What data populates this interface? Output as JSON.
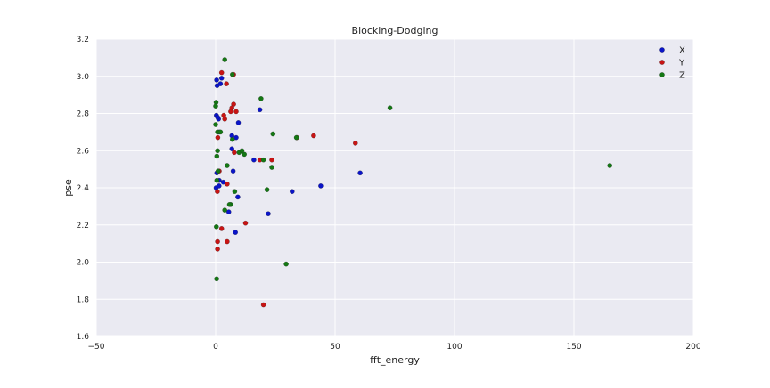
{
  "chart_data": {
    "type": "scatter",
    "title": "Blocking-Dodging",
    "xlabel": "fft_energy",
    "ylabel": "pse",
    "xlim": [
      -50,
      200
    ],
    "ylim": [
      1.6,
      3.2
    ],
    "xticks": [
      -50,
      0,
      50,
      100,
      150,
      200
    ],
    "yticks": [
      1.6,
      1.8,
      2.0,
      2.2,
      2.4,
      2.6,
      2.8,
      3.0,
      3.2
    ],
    "xtick_labels": [
      "−50",
      "0",
      "50",
      "100",
      "150",
      "200"
    ],
    "ytick_labels": [
      "1.6",
      "1.8",
      "2.0",
      "2.2",
      "2.4",
      "2.6",
      "2.8",
      "3.0",
      "3.2"
    ],
    "grid": true,
    "legend_position": "top-right",
    "background_color": "#eaeaf2",
    "grid_color": "#ffffff",
    "series": [
      {
        "name": "X",
        "color": "#0a14c8",
        "points": [
          [
            0.4,
            2.98
          ],
          [
            0.6,
            2.95
          ],
          [
            2.0,
            2.96
          ],
          [
            2.5,
            2.99
          ],
          [
            0.3,
            2.79
          ],
          [
            1.2,
            2.77
          ],
          [
            1.5,
            2.7
          ],
          [
            0.8,
            2.78
          ],
          [
            6.8,
            2.68
          ],
          [
            8.6,
            2.67
          ],
          [
            9.5,
            2.75
          ],
          [
            18.5,
            2.82
          ],
          [
            6.8,
            2.61
          ],
          [
            16.0,
            2.55
          ],
          [
            0.5,
            2.48
          ],
          [
            1.5,
            2.44
          ],
          [
            3.2,
            2.43
          ],
          [
            7.3,
            2.49
          ],
          [
            0.2,
            2.4
          ],
          [
            1.4,
            2.41
          ],
          [
            9.3,
            2.35
          ],
          [
            32.0,
            2.38
          ],
          [
            44.0,
            2.41
          ],
          [
            60.5,
            2.48
          ],
          [
            5.5,
            2.27
          ],
          [
            22.0,
            2.26
          ],
          [
            8.3,
            2.16
          ]
        ]
      },
      {
        "name": "Y",
        "color": "#c81414",
        "points": [
          [
            2.5,
            3.02
          ],
          [
            4.5,
            2.96
          ],
          [
            7.5,
            3.01
          ],
          [
            7.5,
            2.85
          ],
          [
            6.8,
            2.83
          ],
          [
            6.3,
            2.81
          ],
          [
            3.4,
            2.79
          ],
          [
            8.6,
            2.81
          ],
          [
            3.8,
            2.77
          ],
          [
            0.9,
            2.67
          ],
          [
            41.0,
            2.68
          ],
          [
            34.0,
            2.67
          ],
          [
            58.5,
            2.64
          ],
          [
            7.8,
            2.59
          ],
          [
            18.5,
            2.55
          ],
          [
            23.5,
            2.55
          ],
          [
            1.5,
            2.49
          ],
          [
            4.8,
            2.42
          ],
          [
            0.7,
            2.38
          ],
          [
            12.5,
            2.21
          ],
          [
            4.8,
            2.11
          ],
          [
            2.5,
            2.18
          ],
          [
            0.8,
            2.11
          ],
          [
            0.8,
            2.07
          ],
          [
            20.0,
            1.77
          ]
        ]
      },
      {
        "name": "Z",
        "color": "#147814",
        "points": [
          [
            3.8,
            3.09
          ],
          [
            7.0,
            3.01
          ],
          [
            0.2,
            2.86
          ],
          [
            0.0,
            2.84
          ],
          [
            19.0,
            2.88
          ],
          [
            73.0,
            2.83
          ],
          [
            0.0,
            2.74
          ],
          [
            0.8,
            2.7
          ],
          [
            2.0,
            2.7
          ],
          [
            7.0,
            2.66
          ],
          [
            24.0,
            2.69
          ],
          [
            33.8,
            2.67
          ],
          [
            0.8,
            2.6
          ],
          [
            0.5,
            2.57
          ],
          [
            9.8,
            2.59
          ],
          [
            11.0,
            2.6
          ],
          [
            12.0,
            2.58
          ],
          [
            20.0,
            2.55
          ],
          [
            23.5,
            2.51
          ],
          [
            4.8,
            2.52
          ],
          [
            1.0,
            2.49
          ],
          [
            0.5,
            2.44
          ],
          [
            6.3,
            2.31
          ],
          [
            5.8,
            2.31
          ],
          [
            8.0,
            2.38
          ],
          [
            21.5,
            2.39
          ],
          [
            3.8,
            2.28
          ],
          [
            0.3,
            2.19
          ],
          [
            29.5,
            1.99
          ],
          [
            0.4,
            1.91
          ],
          [
            165.0,
            2.52
          ]
        ]
      }
    ]
  }
}
